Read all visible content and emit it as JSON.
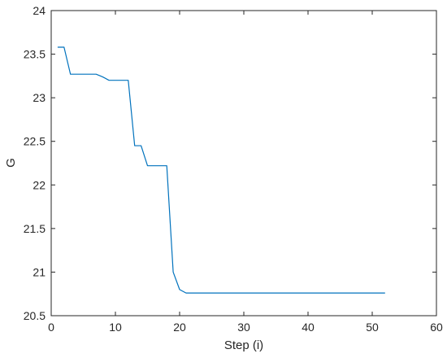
{
  "chart_data": {
    "type": "line",
    "title": "",
    "xlabel": "Step (i)",
    "ylabel": "G",
    "xlim": [
      0,
      60
    ],
    "ylim": [
      20.5,
      24
    ],
    "x_ticks": [
      0,
      10,
      20,
      30,
      40,
      50,
      60
    ],
    "y_ticks": [
      20.5,
      21,
      21.5,
      22,
      22.5,
      23,
      23.5,
      24
    ],
    "x_tick_labels": [
      "0",
      "10",
      "20",
      "30",
      "40",
      "50",
      "60"
    ],
    "y_tick_labels": [
      "20.5",
      "21",
      "21.5",
      "22",
      "22.5",
      "23",
      "23.5",
      "24"
    ],
    "grid": false,
    "legend": "none",
    "series": [
      {
        "color": "#0072BD",
        "x": [
          1,
          2,
          3,
          4,
          5,
          6,
          7,
          8,
          9,
          10,
          11,
          12,
          13,
          14,
          15,
          16,
          17,
          18,
          19,
          20,
          21,
          22,
          25,
          30,
          35,
          40,
          45,
          50,
          52
        ],
        "y": [
          23.58,
          23.58,
          23.27,
          23.27,
          23.27,
          23.27,
          23.27,
          23.24,
          23.2,
          23.2,
          23.2,
          23.2,
          22.45,
          22.45,
          22.22,
          22.22,
          22.22,
          22.22,
          21.0,
          20.8,
          20.76,
          20.76,
          20.76,
          20.76,
          20.76,
          20.76,
          20.76,
          20.76,
          20.76
        ]
      }
    ]
  }
}
